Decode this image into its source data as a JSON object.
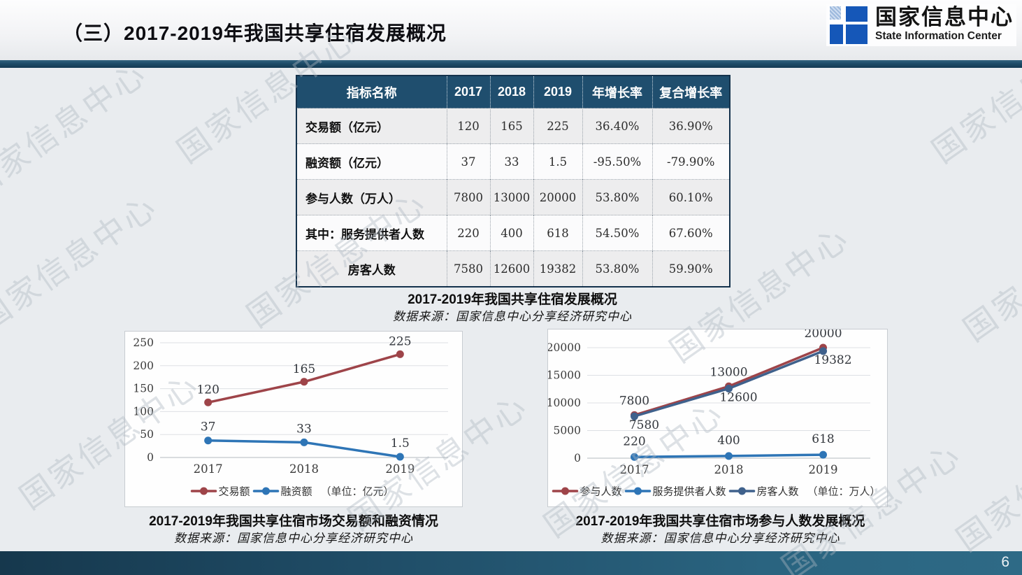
{
  "slide": {
    "title": "（三）2017-2019年我国共享住宿发展概况",
    "page_number": "6",
    "watermark_text": "国家信息中心"
  },
  "logo": {
    "name_cn": "国家信息中心",
    "name_en": "State Information Center"
  },
  "table": {
    "headers": [
      "指标名称",
      "2017",
      "2018",
      "2019",
      "年增长率",
      "复合增长率"
    ],
    "rows": [
      {
        "label": "交易额（亿元）",
        "align": "left",
        "values": [
          "120",
          "165",
          "225",
          "36.40%",
          "36.90%"
        ]
      },
      {
        "label": "融资额（亿元）",
        "align": "left",
        "values": [
          "37",
          "33",
          "1.5",
          "-95.50%",
          "-79.90%"
        ]
      },
      {
        "label": "参与人数（万人）",
        "align": "left",
        "values": [
          "7800",
          "13000",
          "20000",
          "53.80%",
          "60.10%"
        ]
      },
      {
        "label": "其中：服务提供者人数",
        "align": "left",
        "values": [
          "220",
          "400",
          "618",
          "54.50%",
          "67.60%"
        ]
      },
      {
        "label": "房客人数",
        "align": "center",
        "values": [
          "7580",
          "12600",
          "19382",
          "53.80%",
          "59.90%"
        ]
      }
    ],
    "caption": "2017-2019年我国共享住宿发展概况",
    "source": "数据来源：国家信息中心分享经济研究中心"
  },
  "chart_data": [
    {
      "type": "line",
      "title": "2017-2019年我国共享住宿市场交易额和融资情况",
      "caption": "2017-2019年我国共享住宿市场交易额和融资情况",
      "source": "数据来源：国家信息中心分享经济研究中心",
      "categories": [
        "2017",
        "2018",
        "2019"
      ],
      "series": [
        {
          "name": "交易额",
          "values": [
            120,
            165,
            225
          ],
          "color": "#9e4449",
          "label_dx": 0,
          "label_dy": -13
        },
        {
          "name": "融资额",
          "values": [
            37,
            33,
            1.5
          ],
          "color": "#2e75b6",
          "label_dx": 0,
          "label_dy": -14
        }
      ],
      "unit_label": "（单位：亿元）",
      "ylim": [
        0,
        250
      ],
      "yticks": [
        0,
        50,
        100,
        150,
        200,
        250
      ],
      "grid": true,
      "legend_position": "bottom"
    },
    {
      "type": "line",
      "title": "2017-2019年我国共享住宿市场参与人数发展概况",
      "caption": "2017-2019年我国共享住宿市场参与人数发展概况",
      "source": "数据来源：国家信息中心分享经济研究中心",
      "categories": [
        "2017",
        "2018",
        "2019"
      ],
      "series": [
        {
          "name": "参与人数",
          "values": [
            7800,
            13000,
            20000
          ],
          "color": "#9e4449",
          "label_dx": 0,
          "label_dy": -15
        },
        {
          "name": "服务提供者人数",
          "values": [
            220,
            400,
            618
          ],
          "color": "#2e75b6",
          "label_dx": 0,
          "label_dy": -17
        },
        {
          "name": "房客人数",
          "values": [
            7580,
            12600,
            19382
          ],
          "color": "#3f618c",
          "label_dx": 14,
          "label_dy": 18
        }
      ],
      "unit_label": "（单位：万人）",
      "ylim": [
        0,
        20000
      ],
      "yticks": [
        0,
        5000,
        10000,
        15000,
        20000
      ],
      "grid": true,
      "legend_position": "bottom"
    }
  ]
}
